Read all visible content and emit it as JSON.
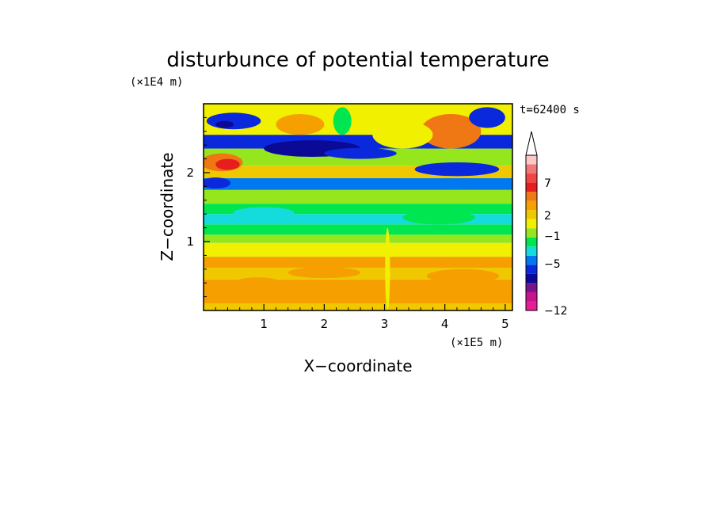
{
  "chart_data": {
    "type": "heatmap",
    "title": "disturbunce of potential temperature",
    "xlabel": "X−coordinate",
    "ylabel": "Z−coordinate",
    "x_unit": "(×1E5 m)",
    "y_unit": "(×1E4 m)",
    "time_label": "t=62400 s",
    "xlim": [
      0,
      5.12
    ],
    "ylim": [
      0,
      3.0
    ],
    "x_ticks": [
      1,
      2,
      3,
      4,
      5
    ],
    "y_ticks": [
      1,
      2
    ],
    "colorbar": {
      "extend": "max",
      "colors": [
        "#e61e96",
        "#c8148c",
        "#78148c",
        "#0a0a96",
        "#0a28dc",
        "#0078f0",
        "#14dcdc",
        "#00e650",
        "#96e61e",
        "#f0f000",
        "#f0c800",
        "#f5a000",
        "#f07814",
        "#e61e1e",
        "#f04646",
        "#f07878",
        "#fac8c8"
      ],
      "tick_labels": [
        "−12",
        "−5",
        "−1",
        "2",
        "7"
      ]
    }
  }
}
